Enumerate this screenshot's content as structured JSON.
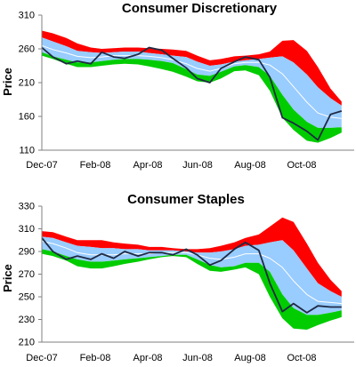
{
  "chart_data": [
    {
      "type": "area",
      "title": "Consumer Discretionary",
      "ylabel": "Price",
      "xlabel": "",
      "ylim": [
        110,
        310
      ],
      "yticks": [
        110,
        160,
        210,
        260,
        310
      ],
      "xticks": [
        "Dec-07",
        "Feb-08",
        "Apr-08",
        "Jun-08",
        "Aug-08",
        "Oct-08"
      ],
      "grid": false,
      "legend": "none",
      "colors": {
        "upper_band": "#ff0000",
        "inner_band": "#99ccff",
        "lower_band": "#00cc00",
        "moving_average": "#ffffff",
        "price": "#1f2a44"
      },
      "x": [
        "2007-12-01",
        "2007-12-15",
        "2008-01-01",
        "2008-01-15",
        "2008-02-01",
        "2008-02-15",
        "2008-03-01",
        "2008-03-15",
        "2008-04-01",
        "2008-04-15",
        "2008-05-01",
        "2008-05-15",
        "2008-06-01",
        "2008-06-15",
        "2008-07-01",
        "2008-07-15",
        "2008-08-01",
        "2008-08-15",
        "2008-09-01",
        "2008-09-15",
        "2008-10-01",
        "2008-10-15",
        "2008-11-01",
        "2008-11-15",
        "2008-12-01",
        "2008-12-15"
      ],
      "series": [
        {
          "role": "upper",
          "values": [
            287,
            283,
            276,
            268,
            262,
            260,
            261,
            262,
            262,
            261,
            260,
            259,
            257,
            250,
            243,
            245,
            249,
            250,
            252,
            256,
            272,
            273,
            257,
            233,
            201,
            182
          ]
        },
        {
          "role": "upper_inner",
          "values": [
            277,
            271,
            264,
            257,
            255,
            254,
            255,
            256,
            256,
            254,
            252,
            250,
            248,
            241,
            235,
            237,
            241,
            243,
            245,
            247,
            249,
            240,
            222,
            203,
            187,
            176
          ]
        },
        {
          "role": "moving_average",
          "values": [
            265,
            259,
            254,
            249,
            247,
            248,
            250,
            250,
            250,
            249,
            247,
            244,
            238,
            231,
            227,
            231,
            238,
            240,
            240,
            236,
            223,
            204,
            181,
            165,
            159,
            157
          ]
        },
        {
          "role": "lower_inner",
          "values": [
            255,
            249,
            244,
            240,
            240,
            242,
            244,
            245,
            245,
            244,
            242,
            239,
            230,
            222,
            220,
            226,
            234,
            236,
            233,
            220,
            192,
            170,
            152,
            143,
            143,
            144
          ]
        },
        {
          "role": "lower",
          "values": [
            250,
            245,
            238,
            233,
            233,
            235,
            237,
            238,
            237,
            234,
            230,
            226,
            219,
            212,
            210,
            216,
            227,
            228,
            221,
            198,
            158,
            140,
            124,
            121,
            128,
            136
          ]
        },
        {
          "role": "price",
          "values": [
            262,
            248,
            238,
            242,
            238,
            255,
            248,
            246,
            252,
            262,
            258,
            246,
            232,
            216,
            210,
            231,
            241,
            248,
            244,
            218,
            158,
            150,
            138,
            125,
            163,
            168
          ]
        }
      ]
    },
    {
      "type": "area",
      "title": "Consumer Staples",
      "ylabel": "Price",
      "xlabel": "",
      "ylim": [
        210,
        330
      ],
      "yticks": [
        210,
        230,
        250,
        270,
        290,
        310,
        330
      ],
      "xticks": [
        "Dec-07",
        "Feb-08",
        "Apr-08",
        "Jun-08",
        "Aug-08",
        "Oct-08"
      ],
      "grid": false,
      "legend": "none",
      "colors": {
        "upper_band": "#ff0000",
        "inner_band": "#99ccff",
        "lower_band": "#00cc00",
        "moving_average": "#ffffff",
        "price": "#1f2a44"
      },
      "x": [
        "2007-12-01",
        "2007-12-15",
        "2008-01-01",
        "2008-01-15",
        "2008-02-01",
        "2008-02-15",
        "2008-03-01",
        "2008-03-15",
        "2008-04-01",
        "2008-04-15",
        "2008-05-01",
        "2008-05-15",
        "2008-06-01",
        "2008-06-15",
        "2008-07-01",
        "2008-07-15",
        "2008-08-01",
        "2008-08-15",
        "2008-09-01",
        "2008-09-15",
        "2008-10-01",
        "2008-10-15",
        "2008-11-01",
        "2008-11-15",
        "2008-12-01",
        "2008-12-15"
      ],
      "series": [
        {
          "role": "upper",
          "values": [
            308,
            307,
            303,
            300,
            300,
            300,
            298,
            297,
            296,
            294,
            294,
            293,
            292,
            292,
            293,
            295,
            298,
            302,
            305,
            312,
            320,
            316,
            297,
            280,
            265,
            255
          ]
        },
        {
          "role": "upper_inner",
          "values": [
            303,
            302,
            298,
            295,
            294,
            293,
            293,
            292,
            292,
            291,
            291,
            291,
            290,
            289,
            289,
            290,
            292,
            295,
            296,
            298,
            300,
            291,
            275,
            262,
            255,
            250
          ]
        },
        {
          "role": "moving_average",
          "values": [
            299,
            297,
            293,
            289,
            287,
            287,
            287,
            288,
            288,
            288,
            289,
            289,
            289,
            287,
            284,
            283,
            285,
            288,
            288,
            284,
            276,
            264,
            252,
            246,
            245,
            244
          ]
        },
        {
          "role": "lower_inner",
          "values": [
            292,
            290,
            286,
            283,
            281,
            281,
            282,
            283,
            284,
            285,
            286,
            287,
            287,
            283,
            278,
            276,
            277,
            280,
            280,
            272,
            252,
            240,
            234,
            234,
            236,
            238
          ]
        },
        {
          "role": "lower",
          "values": [
            288,
            286,
            282,
            277,
            275,
            275,
            277,
            279,
            281,
            283,
            285,
            286,
            285,
            279,
            273,
            272,
            274,
            276,
            270,
            250,
            231,
            222,
            221,
            225,
            229,
            232
          ]
        },
        {
          "role": "price",
          "values": [
            302,
            290,
            283,
            286,
            283,
            288,
            284,
            290,
            286,
            289,
            289,
            287,
            292,
            287,
            278,
            282,
            292,
            298,
            291,
            262,
            237,
            244,
            236,
            242,
            241,
            241
          ]
        }
      ]
    }
  ]
}
